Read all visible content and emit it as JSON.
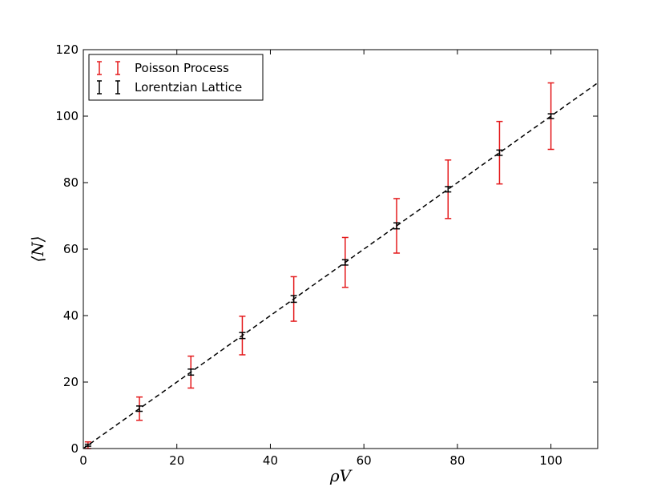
{
  "chart_data": {
    "type": "scatter",
    "title": "",
    "xlabel": "ρV",
    "ylabel": "⟨N⟩",
    "xlim": [
      0,
      110
    ],
    "ylim": [
      0,
      120
    ],
    "xticks": [
      0,
      20,
      40,
      60,
      80,
      100
    ],
    "yticks": [
      0,
      20,
      40,
      60,
      80,
      100,
      120
    ],
    "grid": false,
    "legend_position": "top-left",
    "x": [
      1,
      12,
      23,
      34,
      45,
      56,
      67,
      78,
      89,
      100
    ],
    "series": [
      {
        "name": "Poisson Process",
        "color": "#e41a1c",
        "y": [
          1,
          12,
          23,
          34,
          45,
          56,
          67,
          78,
          89,
          100
        ],
        "err": [
          1.0,
          3.5,
          4.8,
          5.8,
          6.7,
          7.5,
          8.2,
          8.8,
          9.4,
          10.0
        ]
      },
      {
        "name": "Lorentzian Lattice",
        "color": "#000000",
        "y": [
          1,
          12,
          23,
          34,
          45,
          56,
          67,
          78,
          89,
          100
        ],
        "err": [
          0.3,
          0.8,
          0.9,
          0.9,
          1.0,
          0.8,
          0.9,
          0.8,
          0.8,
          0.7
        ]
      }
    ],
    "fit_line": {
      "style": "dashed",
      "color": "#000000",
      "x": [
        0,
        110
      ],
      "y": [
        0,
        110
      ]
    }
  }
}
